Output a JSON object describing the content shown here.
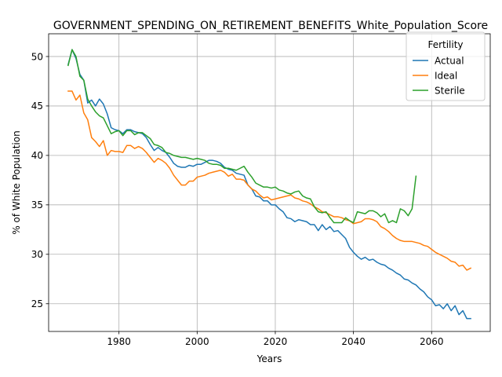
{
  "chart_data": {
    "type": "line",
    "title": "GOVERNMENT_SPENDING_ON_RETIREMENT_BENEFITS_White_Population_Score",
    "xlabel": "Years",
    "ylabel": "% of White Population",
    "xlim": [
      1962,
      2075
    ],
    "ylim": [
      22.2,
      52.3
    ],
    "xticks": [
      1980,
      2000,
      2020,
      2040,
      2060
    ],
    "yticks": [
      25,
      30,
      35,
      40,
      45,
      50
    ],
    "grid": true,
    "legend": {
      "title": "Fertility",
      "placement": "top-right"
    },
    "series": [
      {
        "name": "Actual",
        "color": "#1f77b4",
        "points": [
          [
            1967,
            49.2
          ],
          [
            1968,
            50.7
          ],
          [
            1969,
            49.8
          ],
          [
            1970,
            48.2
          ],
          [
            1971,
            47.6
          ],
          [
            1972,
            45.3
          ],
          [
            1973,
            45.6
          ],
          [
            1974,
            45.0
          ],
          [
            1975,
            45.7
          ],
          [
            1976,
            45.2
          ],
          [
            1977,
            44.2
          ],
          [
            1978,
            42.8
          ],
          [
            1979,
            42.6
          ],
          [
            1980,
            42.5
          ],
          [
            1981,
            42.2
          ],
          [
            1982,
            42.6
          ],
          [
            1983,
            42.6
          ],
          [
            1984,
            42.4
          ],
          [
            1985,
            42.3
          ],
          [
            1986,
            42.2
          ],
          [
            1987,
            41.8
          ],
          [
            1988,
            41.1
          ],
          [
            1989,
            40.5
          ],
          [
            1990,
            40.8
          ],
          [
            1991,
            40.5
          ],
          [
            1992,
            40.3
          ],
          [
            1993,
            39.8
          ],
          [
            1994,
            39.2
          ],
          [
            1995,
            38.9
          ],
          [
            1996,
            38.8
          ],
          [
            1997,
            38.8
          ],
          [
            1998,
            39.0
          ],
          [
            1999,
            38.9
          ],
          [
            2000,
            39.1
          ],
          [
            2001,
            39.1
          ],
          [
            2002,
            39.3
          ],
          [
            2003,
            39.5
          ],
          [
            2004,
            39.5
          ],
          [
            2005,
            39.4
          ],
          [
            2006,
            39.2
          ],
          [
            2007,
            38.8
          ],
          [
            2008,
            38.6
          ],
          [
            2009,
            38.5
          ],
          [
            2010,
            38.2
          ],
          [
            2011,
            38.1
          ],
          [
            2012,
            38.0
          ],
          [
            2013,
            37.0
          ],
          [
            2014,
            36.6
          ],
          [
            2015,
            35.9
          ],
          [
            2016,
            35.8
          ],
          [
            2017,
            35.4
          ],
          [
            2018,
            35.4
          ],
          [
            2019,
            35.0
          ],
          [
            2020,
            35.0
          ],
          [
            2021,
            34.6
          ],
          [
            2022,
            34.3
          ],
          [
            2023,
            33.7
          ],
          [
            2024,
            33.6
          ],
          [
            2025,
            33.3
          ],
          [
            2026,
            33.5
          ],
          [
            2027,
            33.4
          ],
          [
            2028,
            33.3
          ],
          [
            2029,
            33.0
          ],
          [
            2030,
            33.0
          ],
          [
            2031,
            32.4
          ],
          [
            2032,
            33.0
          ],
          [
            2033,
            32.5
          ],
          [
            2034,
            32.8
          ],
          [
            2035,
            32.3
          ],
          [
            2036,
            32.4
          ],
          [
            2037,
            32.0
          ],
          [
            2038,
            31.6
          ],
          [
            2039,
            30.7
          ],
          [
            2040,
            30.2
          ],
          [
            2041,
            29.8
          ],
          [
            2042,
            29.5
          ],
          [
            2043,
            29.7
          ],
          [
            2044,
            29.4
          ],
          [
            2045,
            29.5
          ],
          [
            2046,
            29.2
          ],
          [
            2047,
            29.0
          ],
          [
            2048,
            28.9
          ],
          [
            2049,
            28.6
          ],
          [
            2050,
            28.4
          ],
          [
            2051,
            28.1
          ],
          [
            2052,
            27.9
          ],
          [
            2053,
            27.5
          ],
          [
            2054,
            27.4
          ],
          [
            2055,
            27.1
          ],
          [
            2056,
            26.9
          ],
          [
            2057,
            26.5
          ],
          [
            2058,
            26.2
          ],
          [
            2059,
            25.7
          ],
          [
            2060,
            25.4
          ],
          [
            2061,
            24.8
          ],
          [
            2062,
            24.9
          ],
          [
            2063,
            24.5
          ],
          [
            2064,
            25.0
          ],
          [
            2065,
            24.3
          ],
          [
            2066,
            24.8
          ],
          [
            2067,
            23.9
          ],
          [
            2068,
            24.3
          ],
          [
            2069,
            23.5
          ],
          [
            2070,
            23.5
          ]
        ]
      },
      {
        "name": "Ideal",
        "color": "#ff7f0e",
        "points": [
          [
            1967,
            46.5
          ],
          [
            1968,
            46.5
          ],
          [
            1969,
            45.6
          ],
          [
            1970,
            46.1
          ],
          [
            1971,
            44.3
          ],
          [
            1972,
            43.6
          ],
          [
            1973,
            41.8
          ],
          [
            1974,
            41.4
          ],
          [
            1975,
            40.9
          ],
          [
            1976,
            41.5
          ],
          [
            1977,
            40.0
          ],
          [
            1978,
            40.5
          ],
          [
            1979,
            40.4
          ],
          [
            1980,
            40.4
          ],
          [
            1981,
            40.3
          ],
          [
            1982,
            41.0
          ],
          [
            1983,
            41.0
          ],
          [
            1984,
            40.7
          ],
          [
            1985,
            40.9
          ],
          [
            1986,
            40.7
          ],
          [
            1987,
            40.3
          ],
          [
            1988,
            39.8
          ],
          [
            1989,
            39.3
          ],
          [
            1990,
            39.7
          ],
          [
            1991,
            39.5
          ],
          [
            1992,
            39.2
          ],
          [
            1993,
            38.7
          ],
          [
            1994,
            38.0
          ],
          [
            1995,
            37.5
          ],
          [
            1996,
            37.0
          ],
          [
            1997,
            37.0
          ],
          [
            1998,
            37.4
          ],
          [
            1999,
            37.4
          ],
          [
            2000,
            37.8
          ],
          [
            2001,
            37.9
          ],
          [
            2002,
            38.0
          ],
          [
            2003,
            38.2
          ],
          [
            2004,
            38.3
          ],
          [
            2005,
            38.4
          ],
          [
            2006,
            38.5
          ],
          [
            2007,
            38.3
          ],
          [
            2008,
            37.9
          ],
          [
            2009,
            38.1
          ],
          [
            2010,
            37.6
          ],
          [
            2011,
            37.6
          ],
          [
            2012,
            37.5
          ],
          [
            2013,
            37.0
          ],
          [
            2014,
            36.6
          ],
          [
            2015,
            36.4
          ],
          [
            2016,
            36.0
          ],
          [
            2017,
            35.7
          ],
          [
            2018,
            35.8
          ],
          [
            2019,
            35.5
          ],
          [
            2020,
            35.6
          ],
          [
            2021,
            35.7
          ],
          [
            2022,
            35.8
          ],
          [
            2023,
            35.9
          ],
          [
            2024,
            36.0
          ],
          [
            2025,
            35.7
          ],
          [
            2026,
            35.6
          ],
          [
            2027,
            35.4
          ],
          [
            2028,
            35.3
          ],
          [
            2029,
            35.1
          ],
          [
            2030,
            34.8
          ],
          [
            2031,
            34.6
          ],
          [
            2032,
            34.3
          ],
          [
            2033,
            34.2
          ],
          [
            2034,
            34.0
          ],
          [
            2035,
            33.8
          ],
          [
            2036,
            33.8
          ],
          [
            2037,
            33.7
          ],
          [
            2038,
            33.5
          ],
          [
            2039,
            33.4
          ],
          [
            2040,
            33.1
          ],
          [
            2041,
            33.2
          ],
          [
            2042,
            33.3
          ],
          [
            2043,
            33.6
          ],
          [
            2044,
            33.6
          ],
          [
            2045,
            33.5
          ],
          [
            2046,
            33.3
          ],
          [
            2047,
            32.8
          ],
          [
            2048,
            32.6
          ],
          [
            2049,
            32.3
          ],
          [
            2050,
            31.9
          ],
          [
            2051,
            31.6
          ],
          [
            2052,
            31.4
          ],
          [
            2053,
            31.3
          ],
          [
            2054,
            31.3
          ],
          [
            2055,
            31.3
          ],
          [
            2056,
            31.2
          ],
          [
            2057,
            31.1
          ],
          [
            2058,
            30.9
          ],
          [
            2059,
            30.8
          ],
          [
            2060,
            30.5
          ],
          [
            2061,
            30.2
          ],
          [
            2062,
            30.0
          ],
          [
            2063,
            29.8
          ],
          [
            2064,
            29.6
          ],
          [
            2065,
            29.3
          ],
          [
            2066,
            29.2
          ],
          [
            2067,
            28.8
          ],
          [
            2068,
            28.9
          ],
          [
            2069,
            28.4
          ],
          [
            2070,
            28.6
          ]
        ]
      },
      {
        "name": "Sterile",
        "color": "#2ca02c",
        "points": [
          [
            1967,
            49.1
          ],
          [
            1968,
            50.7
          ],
          [
            1969,
            50.0
          ],
          [
            1970,
            48.0
          ],
          [
            1971,
            47.6
          ],
          [
            1972,
            45.7
          ],
          [
            1973,
            45.0
          ],
          [
            1974,
            44.4
          ],
          [
            1975,
            44.0
          ],
          [
            1976,
            43.8
          ],
          [
            1977,
            43.0
          ],
          [
            1978,
            42.2
          ],
          [
            1979,
            42.4
          ],
          [
            1980,
            42.5
          ],
          [
            1981,
            42.0
          ],
          [
            1982,
            42.5
          ],
          [
            1983,
            42.5
          ],
          [
            1984,
            42.1
          ],
          [
            1985,
            42.3
          ],
          [
            1986,
            42.3
          ],
          [
            1987,
            42.0
          ],
          [
            1988,
            41.7
          ],
          [
            1989,
            41.1
          ],
          [
            1990,
            41.0
          ],
          [
            1991,
            40.8
          ],
          [
            1992,
            40.3
          ],
          [
            1993,
            40.2
          ],
          [
            1994,
            40.0
          ],
          [
            1995,
            39.9
          ],
          [
            1996,
            39.8
          ],
          [
            1997,
            39.8
          ],
          [
            1998,
            39.7
          ],
          [
            1999,
            39.6
          ],
          [
            2000,
            39.7
          ],
          [
            2001,
            39.6
          ],
          [
            2002,
            39.5
          ],
          [
            2003,
            39.2
          ],
          [
            2004,
            39.1
          ],
          [
            2005,
            39.1
          ],
          [
            2006,
            39.0
          ],
          [
            2007,
            38.7
          ],
          [
            2008,
            38.7
          ],
          [
            2009,
            38.6
          ],
          [
            2010,
            38.5
          ],
          [
            2011,
            38.7
          ],
          [
            2012,
            38.9
          ],
          [
            2013,
            38.3
          ],
          [
            2014,
            37.8
          ],
          [
            2015,
            37.2
          ],
          [
            2016,
            37.0
          ],
          [
            2017,
            36.8
          ],
          [
            2018,
            36.8
          ],
          [
            2019,
            36.7
          ],
          [
            2020,
            36.8
          ],
          [
            2021,
            36.5
          ],
          [
            2022,
            36.4
          ],
          [
            2023,
            36.2
          ],
          [
            2024,
            36.1
          ],
          [
            2025,
            36.3
          ],
          [
            2026,
            36.4
          ],
          [
            2027,
            35.9
          ],
          [
            2028,
            35.7
          ],
          [
            2029,
            35.6
          ],
          [
            2030,
            34.8
          ],
          [
            2031,
            34.3
          ],
          [
            2032,
            34.2
          ],
          [
            2033,
            34.3
          ],
          [
            2034,
            33.7
          ],
          [
            2035,
            33.2
          ],
          [
            2036,
            33.2
          ],
          [
            2037,
            33.2
          ],
          [
            2038,
            33.7
          ],
          [
            2039,
            33.4
          ],
          [
            2040,
            33.2
          ],
          [
            2041,
            34.3
          ],
          [
            2042,
            34.2
          ],
          [
            2043,
            34.1
          ],
          [
            2044,
            34.4
          ],
          [
            2045,
            34.4
          ],
          [
            2046,
            34.2
          ],
          [
            2047,
            33.8
          ],
          [
            2048,
            34.1
          ],
          [
            2049,
            33.2
          ],
          [
            2050,
            33.4
          ],
          [
            2051,
            33.2
          ],
          [
            2052,
            34.6
          ],
          [
            2053,
            34.4
          ],
          [
            2054,
            33.9
          ],
          [
            2055,
            34.6
          ],
          [
            2056,
            37.9
          ]
        ]
      }
    ]
  }
}
